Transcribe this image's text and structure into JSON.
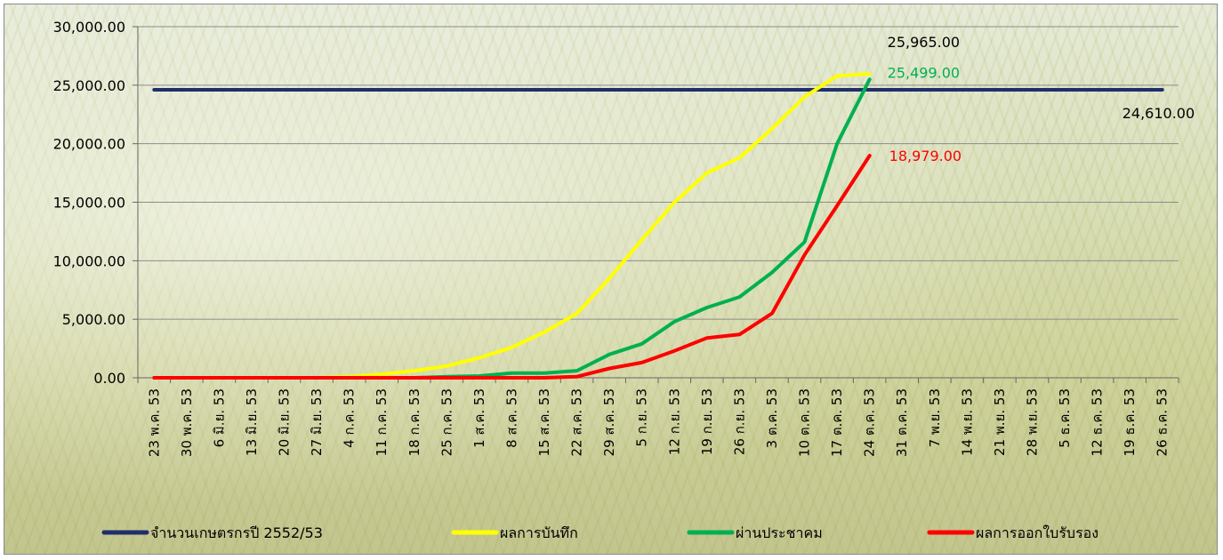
{
  "chart_data": {
    "type": "line",
    "title": "",
    "xlabel": "",
    "ylabel": "",
    "ylim": [
      0,
      30000
    ],
    "y_ticks": [
      "0.00",
      "5,000.00",
      "10,000.00",
      "15,000.00",
      "20,000.00",
      "25,000.00",
      "30,000.00"
    ],
    "y_tick_values": [
      0,
      5000,
      10000,
      15000,
      20000,
      25000,
      30000
    ],
    "grid": true,
    "legend_placement": "bottom",
    "categories": [
      "23 พ.ค. 53",
      "30 พ.ค. 53",
      "6 มิ.ย. 53",
      "13 มิ.ย. 53",
      "20 มิ.ย. 53",
      "27 มิ.ย. 53",
      "4 ก.ค. 53",
      "11 ก.ค. 53",
      "18 ก.ค. 53",
      "25 ก.ค. 53",
      "1 ส.ค. 53",
      "8 ส.ค. 53",
      "15 ส.ค. 53",
      "22 ส.ค. 53",
      "29 ส.ค. 53",
      "5 ก.ย. 53",
      "12 ก.ย. 53",
      "19 ก.ย. 53",
      "26 ก.ย. 53",
      "3 ต.ค. 53",
      "10 ต.ค. 53",
      "17 ต.ค. 53",
      "24 ต.ค. 53",
      "31 ต.ค. 53",
      "7 พ.ย. 53",
      "14 พ.ย. 53",
      "21 พ.ย. 53",
      "28 พ.ย. 53",
      "5 ธ.ค. 53",
      "12 ธ.ค. 53",
      "19 ธ.ค. 53",
      "26 ธ.ค. 53"
    ],
    "series": [
      {
        "name": "จำนวนเกษตรกรปี  2552/53",
        "color": "#1f2f6b",
        "values": [
          24610,
          24610,
          24610,
          24610,
          24610,
          24610,
          24610,
          24610,
          24610,
          24610,
          24610,
          24610,
          24610,
          24610,
          24610,
          24610,
          24610,
          24610,
          24610,
          24610,
          24610,
          24610,
          24610,
          24610,
          24610,
          24610,
          24610,
          24610,
          24610,
          24610,
          24610,
          24610
        ],
        "end_label": "24,610.00"
      },
      {
        "name": "ผลการบันทึก",
        "color": "#ffff00",
        "values": [
          0,
          0,
          0,
          0,
          0,
          0,
          100,
          300,
          600,
          1000,
          1700,
          2600,
          3900,
          5500,
          8500,
          11800,
          15000,
          17500,
          18800,
          21300,
          24000,
          25800,
          25965,
          null,
          null,
          null,
          null,
          null,
          null,
          null,
          null,
          null
        ],
        "end_label": "25,965.00"
      },
      {
        "name": "ผ่านประชาคม",
        "color": "#00b050",
        "values": [
          0,
          0,
          0,
          0,
          0,
          0,
          0,
          0,
          0,
          100,
          150,
          400,
          400,
          600,
          2000,
          2900,
          4800,
          6000,
          6900,
          9000,
          11600,
          20000,
          25499,
          null,
          null,
          null,
          null,
          null,
          null,
          null,
          null,
          null
        ],
        "end_label": "25,499.00"
      },
      {
        "name": "ผลการออกใบรับรอง",
        "color": "#ff0000",
        "values": [
          0,
          0,
          0,
          0,
          0,
          0,
          0,
          0,
          0,
          0,
          0,
          0,
          0,
          100,
          800,
          1300,
          2300,
          3400,
          3700,
          5500,
          10500,
          14700,
          18979,
          null,
          null,
          null,
          null,
          null,
          null,
          null,
          null,
          null
        ],
        "end_label": "18,979.00"
      }
    ]
  }
}
